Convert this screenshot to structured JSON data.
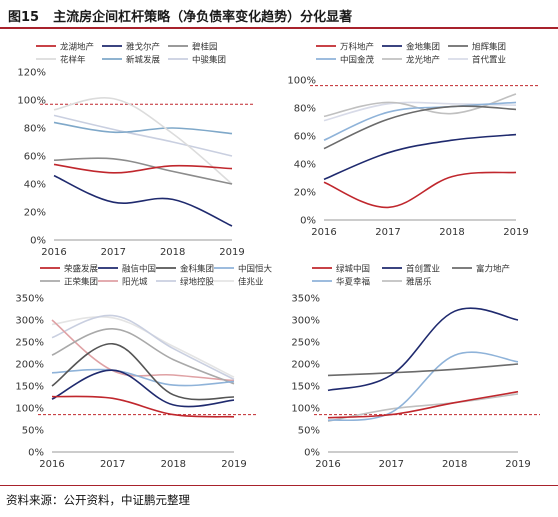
{
  "figure": {
    "number": "图15",
    "title": "主流房企间杠杆策略（净负债率变化趋势）分化显著",
    "source": "资料来源：公开资料，中证鹏元整理"
  },
  "chart_data": [
    {
      "type": "line",
      "x": [
        2016,
        2017,
        2018,
        2019
      ],
      "xticks": [
        "2016",
        "2017",
        "2018",
        "2019"
      ],
      "ylim": [
        0,
        120
      ],
      "yticks": [
        0,
        20,
        40,
        60,
        80,
        100,
        120
      ],
      "ytick_labels": [
        "0%",
        "20%",
        "40%",
        "60%",
        "80%",
        "100%",
        "120%"
      ],
      "threshold": 97,
      "legend_placement": "top",
      "legend_columns": 3,
      "series": [
        {
          "name": "龙湖地产",
          "color": "#c0272d",
          "values": [
            54,
            48,
            53,
            51
          ]
        },
        {
          "name": "雅戈尔产",
          "color": "#1f2a6e",
          "values": [
            46,
            27,
            29,
            10
          ]
        },
        {
          "name": "碧桂园",
          "color": "#8c8c8c",
          "values": [
            57,
            58,
            49,
            40
          ]
        },
        {
          "name": "花样年",
          "color": "#dcdcdc",
          "values": [
            93,
            101,
            76,
            40
          ]
        },
        {
          "name": "新城发展",
          "color": "#7fa8c9",
          "values": [
            84,
            77,
            80,
            76
          ]
        },
        {
          "name": "中骏集团",
          "color": "#c9cfe0",
          "values": [
            89,
            79,
            70,
            60
          ]
        }
      ]
    },
    {
      "type": "line",
      "x": [
        2016,
        2017,
        2018,
        2019
      ],
      "xticks": [
        "2016",
        "2017",
        "2018",
        "2019"
      ],
      "ylim": [
        0,
        100
      ],
      "yticks": [
        0,
        20,
        40,
        60,
        80,
        100
      ],
      "ytick_labels": [
        "0%",
        "20%",
        "40%",
        "60%",
        "80%",
        "100%"
      ],
      "threshold": 96,
      "legend_placement": "top",
      "legend_columns": 3,
      "series": [
        {
          "name": "万科地产",
          "color": "#c0272d",
          "values": [
            27,
            9,
            31,
            34
          ]
        },
        {
          "name": "金地集团",
          "color": "#1f2a6e",
          "values": [
            29,
            48,
            57,
            61
          ]
        },
        {
          "name": "旭辉集团",
          "color": "#6b6b6b",
          "values": [
            51,
            72,
            81,
            79
          ]
        },
        {
          "name": "中国金茂",
          "color": "#8fb3d9",
          "values": [
            57,
            77,
            81,
            84
          ]
        },
        {
          "name": "龙光地产",
          "color": "#c0c0c0",
          "values": [
            74,
            84,
            76,
            90
          ]
        },
        {
          "name": "首代置业",
          "color": "#d8dbe8",
          "values": [
            71,
            83,
            83,
            82
          ]
        }
      ]
    },
    {
      "type": "line",
      "x": [
        2016,
        2017,
        2018,
        2019
      ],
      "xticks": [
        "2016",
        "2017",
        "2018",
        "2019"
      ],
      "ylim": [
        0,
        350
      ],
      "yticks": [
        0,
        50,
        100,
        150,
        200,
        250,
        300,
        350
      ],
      "ytick_labels": [
        "0%",
        "50%",
        "100%",
        "150%",
        "200%",
        "250%",
        "300%",
        "350%"
      ],
      "threshold": 85,
      "legend_placement": "top",
      "legend_columns": 4,
      "series": [
        {
          "name": "荣盛发展",
          "color": "#c0272d",
          "values": [
            126,
            122,
            85,
            80
          ]
        },
        {
          "name": "融信中国",
          "color": "#1f2a6e",
          "values": [
            120,
            186,
            107,
            118
          ]
        },
        {
          "name": "金科集团",
          "color": "#555555",
          "values": [
            150,
            246,
            130,
            125
          ]
        },
        {
          "name": "中国恒大",
          "color": "#8fb3d9",
          "values": [
            180,
            186,
            152,
            160
          ]
        },
        {
          "name": "正荣集团",
          "color": "#a9a9a9",
          "values": [
            220,
            280,
            210,
            155
          ]
        },
        {
          "name": "阳光城",
          "color": "#dfa1a4",
          "values": [
            300,
            185,
            175,
            162
          ]
        },
        {
          "name": "绿地控股",
          "color": "#c9cfe0",
          "values": [
            260,
            310,
            235,
            165
          ]
        },
        {
          "name": "佳兆业",
          "color": "#e4e4e4",
          "values": [
            290,
            305,
            240,
            170
          ]
        }
      ]
    },
    {
      "type": "line",
      "x": [
        2016,
        2017,
        2018,
        2019
      ],
      "xticks": [
        "2016",
        "2017",
        "2018",
        "2019"
      ],
      "ylim": [
        0,
        350
      ],
      "yticks": [
        0,
        50,
        100,
        150,
        200,
        250,
        300,
        350
      ],
      "ytick_labels": [
        "0%",
        "50%",
        "100%",
        "150%",
        "200%",
        "250%",
        "300%",
        "350%"
      ],
      "threshold": 85,
      "legend_placement": "top",
      "legend_columns": 3,
      "series": [
        {
          "name": "绿城中国",
          "color": "#c0272d",
          "values": [
            78,
            85,
            112,
            137
          ]
        },
        {
          "name": "首创置业",
          "color": "#1f2a6e",
          "values": [
            140,
            175,
            320,
            300
          ]
        },
        {
          "name": "富力地产",
          "color": "#6b6b6b",
          "values": [
            174,
            180,
            188,
            200
          ]
        },
        {
          "name": "华夏幸福",
          "color": "#8fb3d9",
          "values": [
            72,
            90,
            220,
            205
          ]
        },
        {
          "name": "雅居乐",
          "color": "#c0c0c0",
          "values": [
            70,
            98,
            112,
            132
          ]
        }
      ]
    }
  ]
}
